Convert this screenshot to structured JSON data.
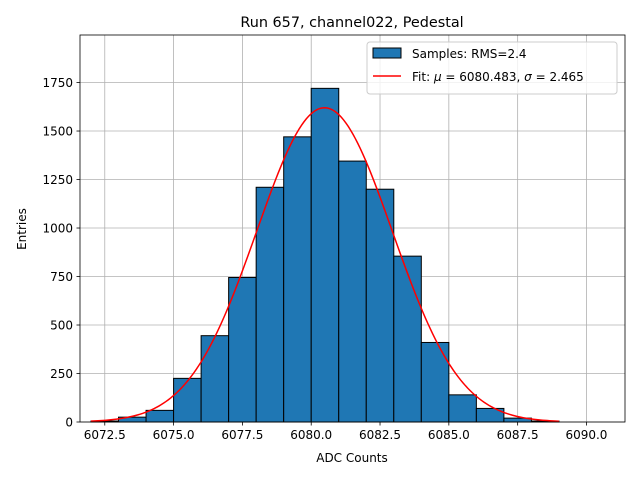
{
  "chart_data": {
    "type": "bar",
    "title": "Run 657, channel022, Pedestal",
    "xlabel": "ADC Counts",
    "ylabel": "Entries",
    "xlim": [
      6071.6,
      6091.4
    ],
    "ylim": [
      0,
      1995
    ],
    "xticks": [
      6072.5,
      6075.0,
      6077.5,
      6080.0,
      6082.5,
      6085.0,
      6087.5,
      6090.0
    ],
    "xtick_labels": [
      "6072.5",
      "6075.0",
      "6077.5",
      "6080.0",
      "6082.5",
      "6085.0",
      "6087.5",
      "6090.0"
    ],
    "yticks": [
      0,
      250,
      500,
      750,
      1000,
      1250,
      1500,
      1750
    ],
    "ytick_labels": [
      "0",
      "250",
      "500",
      "750",
      "1000",
      "1250",
      "1500",
      "1750"
    ],
    "grid": true,
    "legend_position": "top-right",
    "series": [
      {
        "name": "Samples: RMS=2.4",
        "kind": "histogram",
        "color": "#1f77b4",
        "edge_color": "#000000",
        "bins": [
          {
            "left": 6072,
            "right": 6073,
            "value": 5
          },
          {
            "left": 6073,
            "right": 6074,
            "value": 25
          },
          {
            "left": 6074,
            "right": 6075,
            "value": 60
          },
          {
            "left": 6075,
            "right": 6076,
            "value": 225
          },
          {
            "left": 6076,
            "right": 6077,
            "value": 445
          },
          {
            "left": 6077,
            "right": 6078,
            "value": 745
          },
          {
            "left": 6078,
            "right": 6079,
            "value": 1210
          },
          {
            "left": 6079,
            "right": 6080,
            "value": 1470
          },
          {
            "left": 6080,
            "right": 6081,
            "value": 1720
          },
          {
            "left": 6081,
            "right": 6082,
            "value": 1345
          },
          {
            "left": 6082,
            "right": 6083,
            "value": 1200
          },
          {
            "left": 6083,
            "right": 6084,
            "value": 855
          },
          {
            "left": 6084,
            "right": 6085,
            "value": 410
          },
          {
            "left": 6085,
            "right": 6086,
            "value": 140
          },
          {
            "left": 6086,
            "right": 6087,
            "value": 70
          },
          {
            "left": 6087,
            "right": 6088,
            "value": 20
          },
          {
            "left": 6088,
            "right": 6089,
            "value": 5
          }
        ]
      },
      {
        "name": "Fit: μ = 6080.483, σ = 2.465",
        "name_parts": {
          "prefix": "Fit: ",
          "mu_symbol": "μ",
          "middle": " = 6080.483, ",
          "sigma_symbol": "σ",
          "suffix": " = 2.465"
        },
        "kind": "gaussian_fit",
        "color": "#ff0000",
        "mu": 6080.483,
        "sigma": 2.465,
        "amplitude": 1620,
        "x_range": [
          6072,
          6089
        ]
      }
    ]
  }
}
